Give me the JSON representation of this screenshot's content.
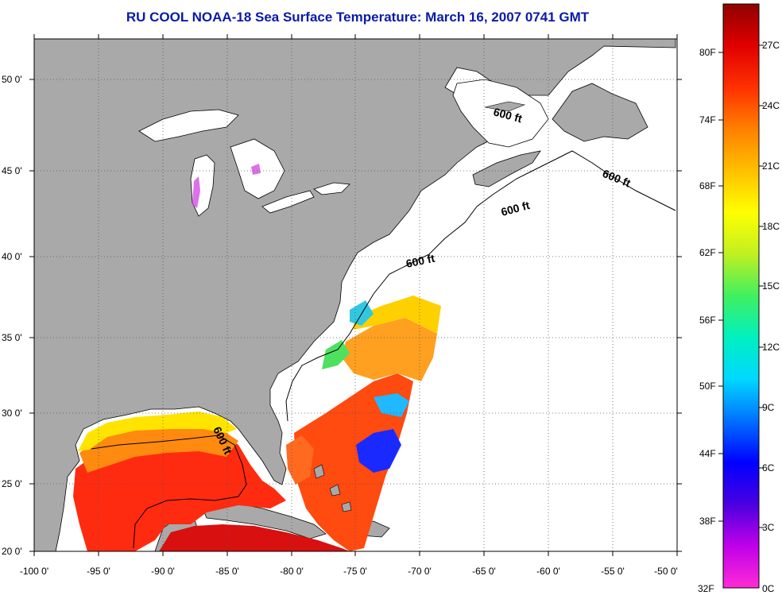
{
  "title": "RU COOL  NOAA-18  Sea Surface Temperature:  March 16, 2007 0741 GMT",
  "map": {
    "lon_ticks": [
      "-100 0'",
      "-95 0'",
      "-90 0'",
      "-85 0'",
      "-80 0'",
      "-75 0'",
      "-70 0'",
      "-65 0'",
      "-60 0'",
      "-55 0'",
      "-50 0'"
    ],
    "lat_ticks": [
      "50 0'",
      "45 0'",
      "40 0'",
      "35 0'",
      "30 0'",
      "25 0'",
      "20 0'"
    ],
    "bathymetry_label": "600 ft",
    "colors": {
      "land": "#a9a9a9",
      "ocean_no_data": "#ffffff",
      "coastline": "#000000"
    }
  },
  "colorbar": {
    "fahrenheit": [
      "80F",
      "74F",
      "68F",
      "62F",
      "56F",
      "50F",
      "44F",
      "38F",
      "32F"
    ],
    "celsius": [
      "27C",
      "24C",
      "21C",
      "18C",
      "15C",
      "12C",
      "9C",
      "6C",
      "3C",
      "0C"
    ],
    "gradient": [
      "#ff2bd6",
      "#c000e8",
      "#4a00e0",
      "#0000ff",
      "#0070ff",
      "#00d8ff",
      "#00f0c0",
      "#40f060",
      "#c0f020",
      "#ffff00",
      "#ffc000",
      "#ff8000",
      "#ff3000",
      "#e00000",
      "#900000"
    ]
  }
}
